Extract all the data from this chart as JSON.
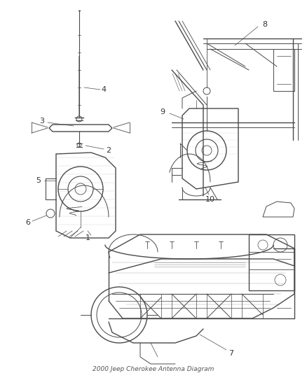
{
  "background_color": "#ffffff",
  "line_color": "#4a4a4a",
  "label_color": "#333333",
  "fig_width": 4.38,
  "fig_height": 5.33,
  "dpi": 100
}
